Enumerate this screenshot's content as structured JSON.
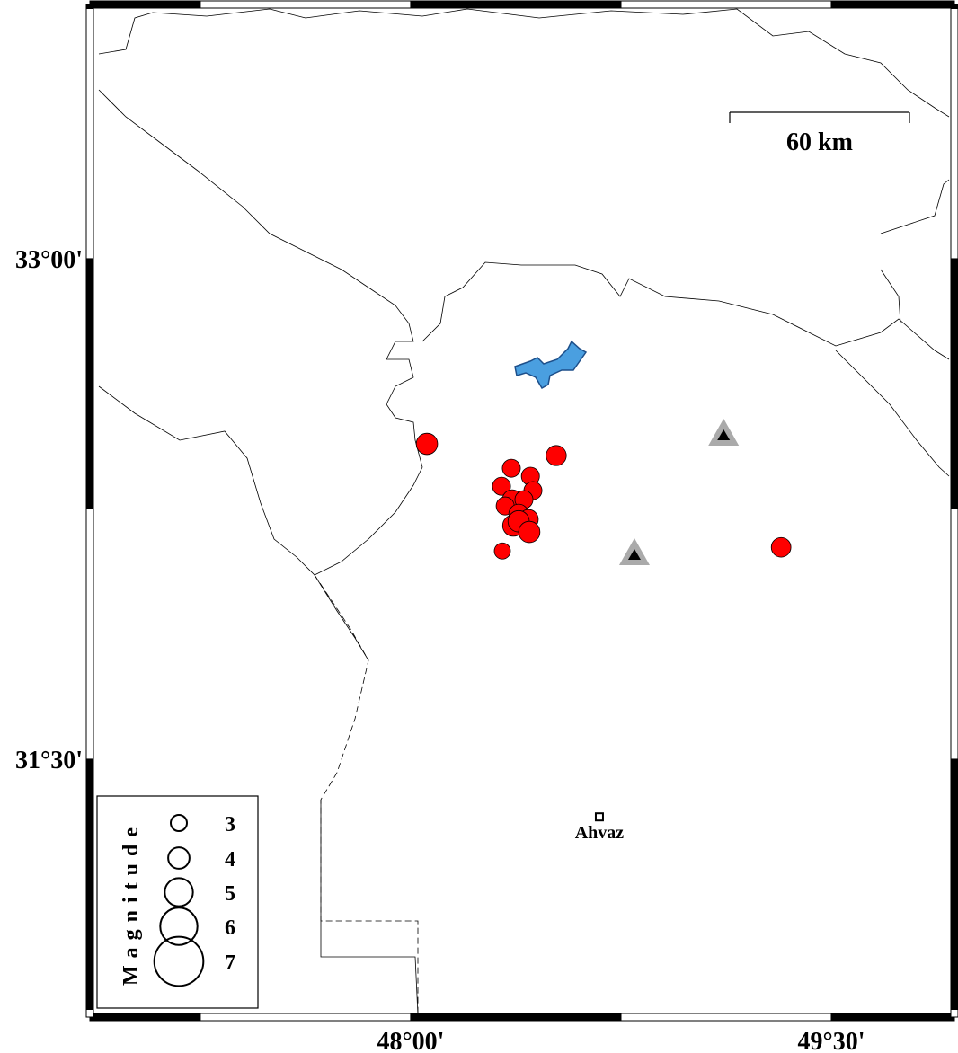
{
  "map": {
    "xlim": [
      46.856,
      49.939
    ],
    "ylim": [
      30.727,
      33.762
    ],
    "xticks": [
      {
        "value": 48,
        "label": "48°00'"
      },
      {
        "value": 49.5,
        "label": "49°30'"
      }
    ],
    "yticks": [
      {
        "value": 33,
        "label": "33°00'"
      },
      {
        "value": 31.5,
        "label": "31°30'"
      }
    ],
    "scale_bar": "60 km",
    "events": {
      "lon": [
        48.058,
        48.519,
        48.359,
        48.427,
        48.324,
        48.436,
        48.362,
        48.404,
        48.337,
        48.385,
        48.42,
        48.366,
        48.385,
        48.423,
        48.327,
        49.321
      ],
      "lat": [
        32.445,
        32.41,
        32.372,
        32.348,
        32.318,
        32.305,
        32.278,
        32.278,
        32.259,
        32.235,
        32.219,
        32.2,
        32.213,
        32.181,
        32.124,
        32.135
      ],
      "magnitude": [
        4.0,
        3.8,
        3.4,
        3.4,
        3.4,
        3.4,
        3.7,
        3.4,
        3.4,
        3.7,
        3.7,
        4.0,
        4.0,
        4.0,
        3.0,
        3.7
      ],
      "color": "#ff0000"
    },
    "stations": {
      "lon": [
        49.116,
        48.798
      ],
      "lat": [
        32.472,
        32.114
      ]
    },
    "city": {
      "name": "Ahvaz",
      "lon": 48.673,
      "lat": 31.327
    },
    "legend": {
      "title": "Magnitude",
      "sizes": [
        3,
        4,
        5,
        6,
        7
      ]
    }
  }
}
